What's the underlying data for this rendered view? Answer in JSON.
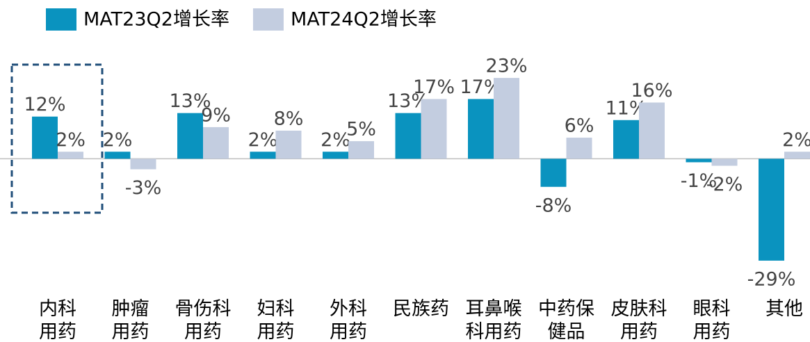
{
  "chart_data": {
    "type": "bar",
    "categories": [
      [
        "内科",
        "用药"
      ],
      [
        "肿瘤",
        "用药"
      ],
      [
        "骨伤科",
        "用药"
      ],
      [
        "妇科",
        "用药"
      ],
      [
        "外科",
        "用药"
      ],
      [
        "民族药"
      ],
      [
        "耳鼻喉",
        "科用药"
      ],
      [
        "中药保",
        "健品"
      ],
      [
        "皮肤科",
        "用药"
      ],
      [
        "眼科",
        "用药"
      ],
      [
        "其他"
      ]
    ],
    "series": [
      {
        "name": "MAT23Q2增长率",
        "color": "#0a93bf",
        "values": [
          12,
          2,
          13,
          2,
          2,
          13,
          17,
          -8,
          11,
          -1,
          -29
        ],
        "value_labels": [
          "12%",
          "2%",
          "13%",
          "2%",
          "2%",
          "13%",
          "17%",
          "-8%",
          "11%",
          "-1%",
          "-29%"
        ]
      },
      {
        "name": "MAT24Q2增长率",
        "color": "#c3cde0",
        "values": [
          2,
          -3,
          9,
          8,
          5,
          17,
          23,
          6,
          16,
          -2,
          2
        ],
        "value_labels": [
          "2%",
          "-3%",
          "9%",
          "8%",
          "5%",
          "17%",
          "23%",
          "6%",
          "16%",
          "-2%",
          "2%"
        ]
      }
    ],
    "ylim": [
      -30,
      25
    ],
    "legend": "top"
  }
}
